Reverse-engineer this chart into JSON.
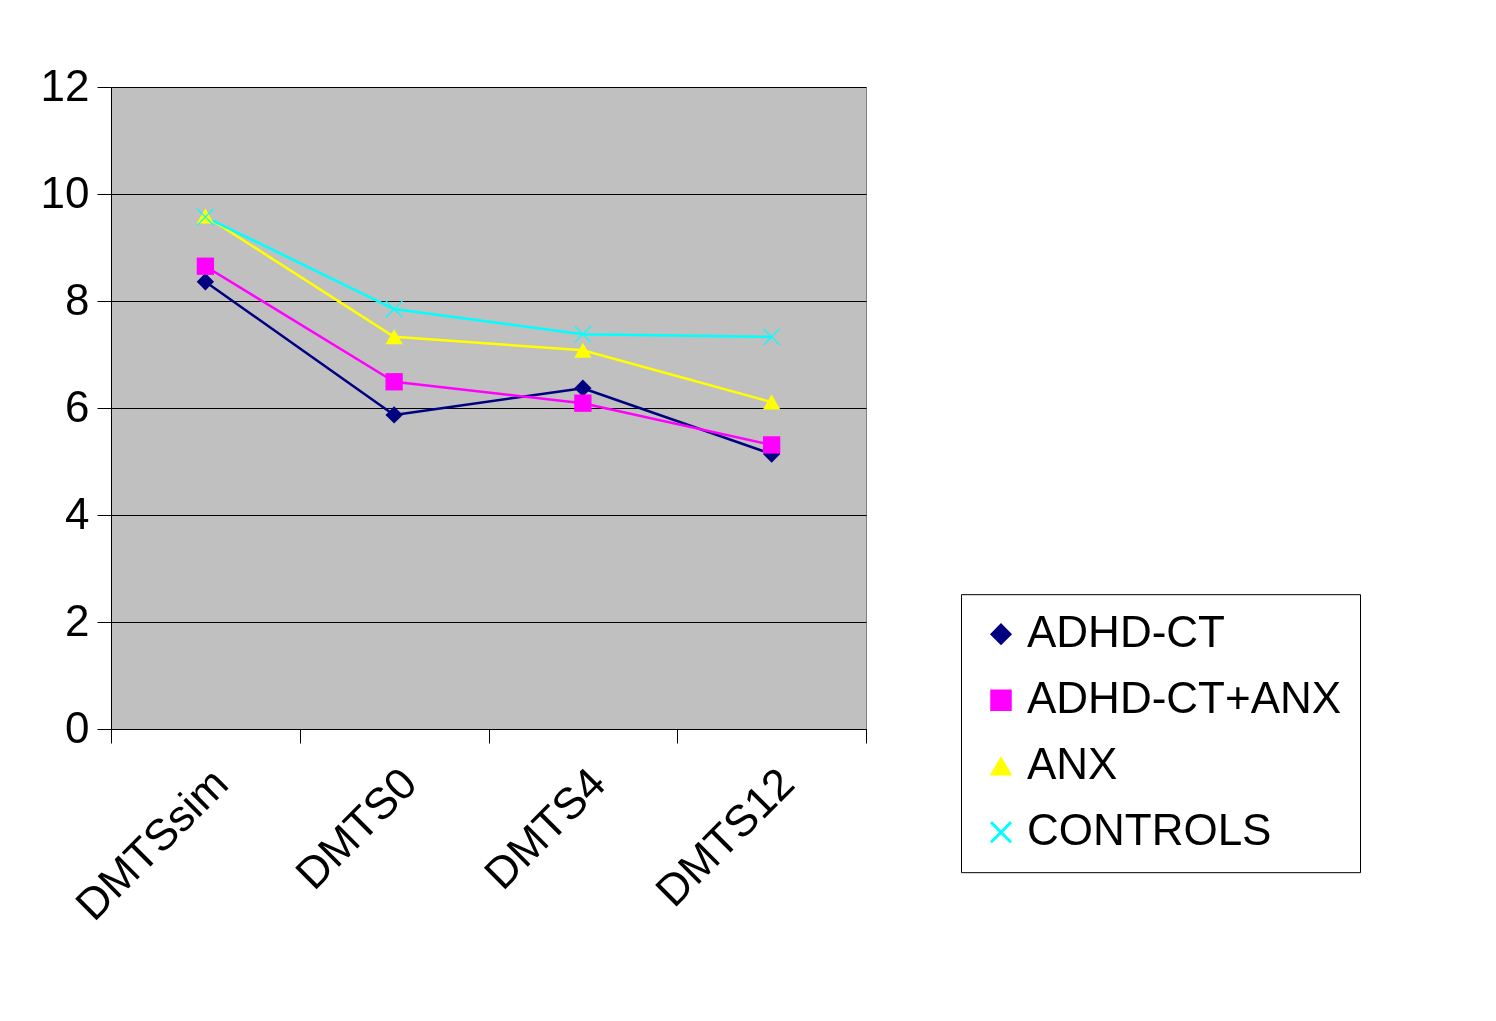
{
  "chart_data": {
    "type": "line",
    "categories": [
      "DMTSsim",
      "DMTS0",
      "DMTS4",
      "DMTS12"
    ],
    "series": [
      {
        "name": "ADHD-CT",
        "color": "#000080",
        "marker": "diamond",
        "values": [
          8.36,
          5.87,
          6.37,
          5.14
        ]
      },
      {
        "name": "ADHD-CT+ANX",
        "color": "#ff00ff",
        "marker": "square",
        "values": [
          8.65,
          6.49,
          6.09,
          5.31
        ]
      },
      {
        "name": "ANX",
        "color": "#ffff00",
        "marker": "triangle",
        "values": [
          9.59,
          7.33,
          7.08,
          6.11
        ]
      },
      {
        "name": "CONTROLS",
        "color": "#00ffff",
        "marker": "cross",
        "values": [
          9.57,
          7.85,
          7.38,
          7.33
        ]
      }
    ],
    "ylim": [
      0,
      12
    ],
    "yticks": [
      0,
      2,
      4,
      6,
      8,
      10,
      12
    ],
    "grid": "y",
    "legend": "right",
    "line_style": "solid"
  }
}
